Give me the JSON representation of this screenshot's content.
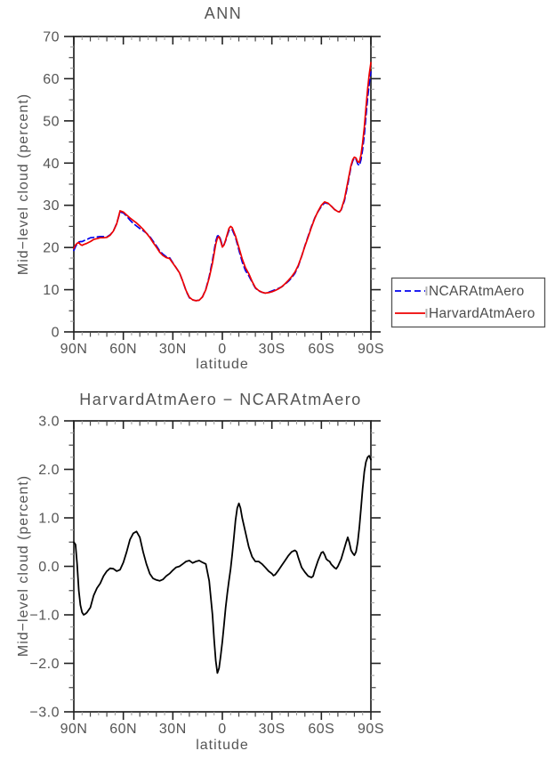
{
  "figure": {
    "background": "#ffffff",
    "text_color": "#555555",
    "axis_color": "#222222",
    "mid_tick_color": "#444444",
    "minor_tick_color": "#9a9a9a"
  },
  "chart_data": [
    {
      "type": "line",
      "title": "ANN",
      "xlabel": "latitude",
      "ylabel": "Mid−level cloud (percent)",
      "xlim": [
        90,
        -90
      ],
      "ylim": [
        0,
        70
      ],
      "grid": false,
      "xticks": {
        "major": [
          90,
          60,
          30,
          0,
          -30,
          -60,
          -90
        ],
        "labels": [
          "90N",
          "60N",
          "30N",
          "0",
          "30S",
          "60S",
          "90S"
        ],
        "mid_step": 10,
        "minor_step": 5
      },
      "yticks": {
        "major": [
          0,
          10,
          20,
          30,
          40,
          50,
          60,
          70
        ],
        "labels": [
          "0",
          "10",
          "20",
          "30",
          "40",
          "50",
          "60",
          "70"
        ],
        "mid_step": 5,
        "minor_step": 2.5
      },
      "legend": {
        "position": "right-outside",
        "entries": [
          {
            "label": "NCARAtmAero",
            "color": "#0000ee",
            "style": "dashed"
          },
          {
            "label": "HarvardAtmAero",
            "color": "#ee0000",
            "style": "solid"
          }
        ]
      },
      "series": [
        {
          "name": "NCARAtmAero",
          "color": "#0000ee",
          "dash": "7 4",
          "width": 1.7,
          "lat": [
            90,
            89,
            88,
            87,
            86,
            85,
            84,
            82,
            80,
            78,
            76,
            74,
            72,
            70,
            68,
            66,
            64,
            62,
            60,
            58,
            56,
            54,
            52,
            50,
            48,
            46,
            44,
            42,
            40,
            38,
            36,
            34,
            32,
            30,
            28,
            26,
            24,
            22,
            20,
            18,
            16,
            14,
            12,
            10,
            8,
            6,
            4,
            3,
            2,
            1,
            0,
            -1,
            -2,
            -3,
            -4,
            -5,
            -6,
            -8,
            -10,
            -12,
            -14,
            -16,
            -18,
            -20,
            -22,
            -24,
            -26,
            -28,
            -30,
            -32,
            -34,
            -36,
            -38,
            -40,
            -42,
            -44,
            -46,
            -48,
            -50,
            -52,
            -54,
            -56,
            -58,
            -60,
            -62,
            -64,
            -66,
            -68,
            -70,
            -71,
            -72,
            -74,
            -76,
            -78,
            -79,
            -80,
            -81,
            -82,
            -83,
            -84,
            -85,
            -86,
            -87,
            -88,
            -89,
            -90
          ],
          "values": [
            19.3,
            20.2,
            20.9,
            21.3,
            21.4,
            21.4,
            21.6,
            21.9,
            22.3,
            22.4,
            22.5,
            22.6,
            22.6,
            22.5,
            23.0,
            23.9,
            25.7,
            28.4,
            28.2,
            27.4,
            26.5,
            25.7,
            25.1,
            24.5,
            24.0,
            23.4,
            22.6,
            21.5,
            20.4,
            19.2,
            18.4,
            17.8,
            17.6,
            16.4,
            15.2,
            14.0,
            12.0,
            9.7,
            8.1,
            7.6,
            7.4,
            7.5,
            8.3,
            10.1,
            13.1,
            17.0,
            21.5,
            22.7,
            22.9,
            21.8,
            20.4,
            20.7,
            21.6,
            22.9,
            24.0,
            24.4,
            24.2,
            22.4,
            19.4,
            16.6,
            14.5,
            13.3,
            11.8,
            10.4,
            9.7,
            9.4,
            9.2,
            9.4,
            9.7,
            10.0,
            10.3,
            10.7,
            11.3,
            12.0,
            12.8,
            13.9,
            15.6,
            17.9,
            20.4,
            22.7,
            25.0,
            27.0,
            28.5,
            29.7,
            30.6,
            30.4,
            29.8,
            29.0,
            28.5,
            28.5,
            28.9,
            31.1,
            34.9,
            39.2,
            40.5,
            41.2,
            40.9,
            39.8,
            39.4,
            40.8,
            43.2,
            46.6,
            50.9,
            55.3,
            58.7,
            61.6
          ]
        },
        {
          "name": "HarvardAtmAero",
          "color": "#ee0000",
          "dash": null,
          "width": 1.7,
          "lat": [
            90,
            89,
            88,
            87,
            86,
            85,
            84,
            82,
            80,
            78,
            76,
            74,
            72,
            70,
            68,
            66,
            64,
            62,
            60,
            58,
            56,
            54,
            52,
            50,
            48,
            46,
            44,
            42,
            40,
            38,
            36,
            34,
            32,
            30,
            28,
            26,
            24,
            22,
            20,
            18,
            16,
            14,
            12,
            10,
            8,
            6,
            4,
            3,
            2,
            1,
            0,
            -1,
            -2,
            -3,
            -4,
            -5,
            -6,
            -8,
            -10,
            -12,
            -14,
            -16,
            -18,
            -20,
            -22,
            -24,
            -26,
            -28,
            -30,
            -32,
            -34,
            -36,
            -38,
            -40,
            -42,
            -44,
            -46,
            -48,
            -50,
            -52,
            -54,
            -56,
            -58,
            -60,
            -62,
            -64,
            -66,
            -68,
            -70,
            -71,
            -72,
            -74,
            -76,
            -78,
            -79,
            -80,
            -81,
            -82,
            -83,
            -84,
            -85,
            -86,
            -87,
            -88,
            -89,
            -90
          ],
          "values": [
            19.8,
            20.6,
            21.0,
            21.2,
            20.7,
            20.5,
            20.7,
            21.0,
            21.4,
            21.9,
            22.1,
            22.3,
            22.3,
            22.4,
            22.9,
            23.9,
            25.6,
            28.7,
            28.4,
            27.7,
            27.0,
            26.4,
            25.8,
            25.1,
            24.3,
            23.4,
            22.4,
            21.2,
            20.1,
            18.9,
            18.1,
            17.6,
            17.4,
            16.3,
            15.2,
            14.0,
            12.0,
            9.8,
            8.2,
            7.6,
            7.4,
            7.5,
            8.3,
            10.0,
            12.8,
            16.3,
            20.8,
            22.2,
            22.6,
            21.5,
            20.1,
            20.6,
            21.8,
            23.2,
            24.5,
            25.0,
            24.7,
            22.7,
            20.0,
            17.3,
            15.2,
            13.8,
            12.0,
            10.5,
            9.8,
            9.4,
            9.2,
            9.3,
            9.5,
            9.8,
            10.2,
            10.7,
            11.4,
            12.2,
            13.1,
            14.2,
            15.8,
            17.9,
            20.3,
            22.5,
            24.8,
            26.9,
            28.6,
            30.0,
            30.8,
            30.5,
            29.8,
            29.0,
            28.5,
            28.4,
            29.0,
            31.5,
            35.5,
            39.5,
            40.8,
            41.4,
            41.2,
            40.3,
            40.2,
            42.0,
            44.8,
            48.5,
            53.0,
            57.5,
            61.0,
            63.8
          ]
        }
      ]
    },
    {
      "type": "line",
      "title": "HarvardAtmAero − NCARAtmAero",
      "xlabel": "latitude",
      "ylabel": "Mid−level cloud (percent)",
      "xlim": [
        90,
        -90
      ],
      "ylim": [
        -3,
        3
      ],
      "grid": false,
      "xticks": {
        "major": [
          90,
          60,
          30,
          0,
          -30,
          -60,
          -90
        ],
        "labels": [
          "90N",
          "60N",
          "30N",
          "0",
          "30S",
          "60S",
          "90S"
        ],
        "mid_step": 10,
        "minor_step": 5
      },
      "yticks": {
        "major": [
          -3,
          -2,
          -1,
          0,
          1,
          2,
          3
        ],
        "labels": [
          "−3.0",
          "−2.0",
          "−1.0",
          "0.0",
          "1.0",
          "2.0",
          "3.0"
        ],
        "mid_step": 0.5,
        "minor_step": 0.25
      },
      "series": [
        {
          "name": "HarvardAtmAero − NCARAtmAero",
          "color": "#000000",
          "dash": null,
          "width": 1.8,
          "lat": [
            90,
            89,
            88,
            87,
            86,
            85,
            84,
            83,
            82,
            81,
            80,
            78,
            76,
            74,
            72,
            70,
            68,
            66,
            64,
            62,
            60,
            58,
            56,
            54,
            52,
            50,
            48,
            46,
            44,
            42,
            40,
            38,
            36,
            34,
            32,
            30,
            28,
            26,
            24,
            22,
            20,
            18,
            16,
            14,
            12,
            10,
            8,
            6,
            5,
            4,
            3,
            2,
            1,
            0,
            -1,
            -2,
            -3,
            -4,
            -5,
            -6,
            -7,
            -8,
            -9,
            -10,
            -11,
            -12,
            -14,
            -16,
            -18,
            -20,
            -22,
            -24,
            -26,
            -28,
            -30,
            -31,
            -32,
            -34,
            -36,
            -38,
            -40,
            -42,
            -44,
            -45,
            -46,
            -48,
            -50,
            -52,
            -54,
            -55,
            -56,
            -58,
            -60,
            -61,
            -62,
            -63,
            -64,
            -65,
            -66,
            -68,
            -69,
            -70,
            -72,
            -74,
            -75,
            -76,
            -77,
            -78,
            -79,
            -80,
            -81,
            -82,
            -83,
            -84,
            -85,
            -86,
            -87,
            -88,
            -89,
            -90
          ],
          "values": [
            0.5,
            0.45,
            0.05,
            -0.5,
            -0.8,
            -0.95,
            -1.0,
            -0.98,
            -0.95,
            -0.9,
            -0.85,
            -0.6,
            -0.45,
            -0.35,
            -0.2,
            -0.1,
            -0.04,
            -0.05,
            -0.1,
            -0.07,
            0.08,
            0.3,
            0.55,
            0.68,
            0.72,
            0.6,
            0.3,
            0.05,
            -0.15,
            -0.25,
            -0.28,
            -0.3,
            -0.27,
            -0.2,
            -0.15,
            -0.08,
            -0.02,
            0.0,
            0.05,
            0.1,
            0.12,
            0.07,
            0.1,
            0.12,
            0.08,
            0.05,
            -0.3,
            -1.0,
            -1.5,
            -1.95,
            -2.2,
            -2.1,
            -1.85,
            -1.55,
            -1.2,
            -0.85,
            -0.55,
            -0.3,
            -0.05,
            0.25,
            0.6,
            0.95,
            1.2,
            1.3,
            1.2,
            1.0,
            0.7,
            0.4,
            0.2,
            0.1,
            0.1,
            0.05,
            -0.02,
            -0.1,
            -0.15,
            -0.19,
            -0.17,
            -0.08,
            0.02,
            0.12,
            0.22,
            0.3,
            0.33,
            0.3,
            0.18,
            -0.02,
            -0.12,
            -0.2,
            -0.23,
            -0.2,
            -0.08,
            0.12,
            0.28,
            0.3,
            0.24,
            0.15,
            0.12,
            0.1,
            0.04,
            -0.03,
            -0.05,
            0.0,
            0.15,
            0.38,
            0.5,
            0.6,
            0.48,
            0.33,
            0.27,
            0.23,
            0.3,
            0.5,
            0.8,
            1.2,
            1.6,
            1.95,
            2.15,
            2.25,
            2.28,
            2.2
          ]
        }
      ]
    }
  ]
}
